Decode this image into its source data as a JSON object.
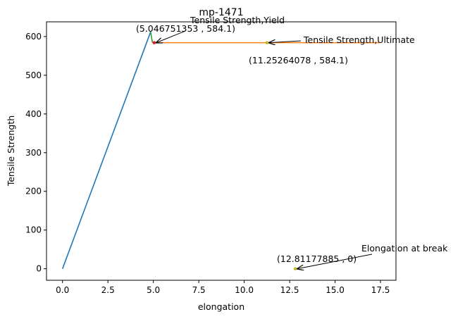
{
  "chart_data": {
    "type": "line",
    "title": "mp-1471",
    "xlabel": "elongation",
    "ylabel": "Tensile Strength",
    "xlim": [
      -0.88,
      18.35
    ],
    "ylim": [
      -29.7,
      638
    ],
    "x_ticks": [
      0.0,
      2.5,
      5.0,
      7.5,
      10.0,
      12.5,
      15.0,
      17.5
    ],
    "x_tick_labels": [
      "0.0",
      "2.5",
      "5.0",
      "7.5",
      "10.0",
      "12.5",
      "15.0",
      "17.5"
    ],
    "y_ticks": [
      0,
      100,
      200,
      300,
      400,
      500,
      600
    ],
    "y_tick_labels": [
      "0",
      "100",
      "200",
      "300",
      "400",
      "500",
      "600"
    ],
    "grid": false,
    "series": [
      {
        "color": "#1f77b4",
        "points": [
          [
            0,
            0
          ],
          [
            4.85,
            612
          ]
        ]
      },
      {
        "color": "#2ca02c",
        "points": [
          [
            4.85,
            612
          ],
          [
            4.95,
            584.1
          ]
        ]
      },
      {
        "color": "#ff7f0e",
        "points": [
          [
            4.95,
            584.1
          ],
          [
            17.45,
            584.1
          ]
        ]
      }
    ],
    "markers": [
      {
        "x": 5.046751353,
        "y": 584.1,
        "color": "#d62728"
      },
      {
        "x": 11.25264078,
        "y": 584.1,
        "color": "#bcbd22"
      },
      {
        "x": 12.81177885,
        "y": 0,
        "color": "#bcbd22"
      }
    ],
    "annotations": [
      {
        "label": "Tensile Strength,Yield",
        "coord_label": "(5.046751353 , 584.1)",
        "point": [
          5.046751353,
          584.1
        ]
      },
      {
        "label": "Tensile Strength,Ultimate",
        "coord_label": "(11.25264078 , 584.1)",
        "point": [
          11.25264078,
          584.1
        ]
      },
      {
        "label": "Elongation at break",
        "coord_label": "(12.81177885 , 0)",
        "point": [
          12.81177885,
          0
        ]
      }
    ]
  }
}
